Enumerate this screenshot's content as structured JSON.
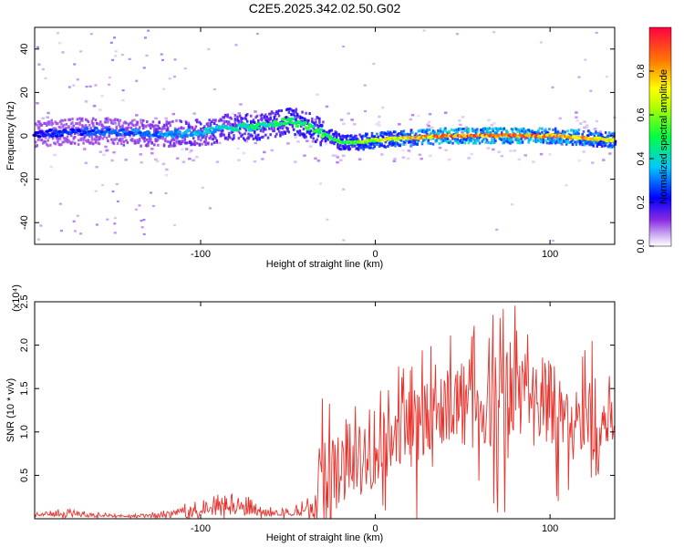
{
  "figure": {
    "title": "C2E5.2025.342.02.50.G02"
  },
  "colors": {
    "snr_line": "#e8322c",
    "background": "#ffffff",
    "axes": "#000000"
  },
  "chart_data": [
    {
      "type": "heatmap",
      "xlabel": "Height of straight line (km)",
      "ylabel": "Frequency (Hz)",
      "xlim": [
        -195,
        137
      ],
      "ylim": [
        -50,
        50
      ],
      "x_ticks": [
        -100,
        0,
        100
      ],
      "y_ticks": [
        -40,
        -20,
        0,
        20,
        40
      ],
      "colorbar": {
        "label": "Normalized spectral amplitude",
        "range": [
          0,
          1
        ],
        "ticks": [
          "0.0",
          "0.2",
          "0.4",
          "0.6",
          "0.8"
        ],
        "colormap": "rainbow (magenta-blue-cyan-green-yellow-red)"
      },
      "ridge_frequency_hz": [
        {
          "x": -190,
          "f": 1
        },
        {
          "x": -170,
          "f": 2
        },
        {
          "x": -150,
          "f": 2
        },
        {
          "x": -130,
          "f": 1
        },
        {
          "x": -110,
          "f": 1
        },
        {
          "x": -95,
          "f": 2
        },
        {
          "x": -85,
          "f": 4
        },
        {
          "x": -70,
          "f": 4
        },
        {
          "x": -60,
          "f": 5
        },
        {
          "x": -50,
          "f": 7
        },
        {
          "x": -40,
          "f": 5
        },
        {
          "x": -30,
          "f": 1
        },
        {
          "x": -20,
          "f": -3
        },
        {
          "x": -10,
          "f": -3
        },
        {
          "x": 0,
          "f": -2
        },
        {
          "x": 20,
          "f": -1
        },
        {
          "x": 40,
          "f": 0
        },
        {
          "x": 60,
          "f": 0
        },
        {
          "x": 80,
          "f": 0
        },
        {
          "x": 100,
          "f": 0
        },
        {
          "x": 120,
          "f": -1
        },
        {
          "x": 135,
          "f": -2
        }
      ],
      "ridge_amplitude": [
        {
          "x": -190,
          "a": 0.25
        },
        {
          "x": -150,
          "a": 0.3
        },
        {
          "x": -120,
          "a": 0.35
        },
        {
          "x": -100,
          "a": 0.4
        },
        {
          "x": -80,
          "a": 0.45
        },
        {
          "x": -60,
          "a": 0.5
        },
        {
          "x": -40,
          "a": 0.55
        },
        {
          "x": -20,
          "a": 0.55
        },
        {
          "x": 0,
          "a": 0.7
        },
        {
          "x": 20,
          "a": 0.8
        },
        {
          "x": 40,
          "a": 0.95
        },
        {
          "x": 60,
          "a": 0.95
        },
        {
          "x": 80,
          "a": 0.95
        },
        {
          "x": 100,
          "a": 0.9
        },
        {
          "x": 120,
          "a": 0.85
        },
        {
          "x": 135,
          "a": 0.7
        }
      ]
    },
    {
      "type": "line",
      "xlabel": "Height of straight line (km)",
      "ylabel": "SNR (10 * v/v)",
      "y_scale_label": "(x10⁴)",
      "xlim": [
        -195,
        137
      ],
      "ylim": [
        0,
        2.5
      ],
      "x_ticks": [
        -100,
        0,
        100
      ],
      "y_ticks": [
        0.5,
        1.0,
        1.5,
        2.0,
        2.5
      ],
      "series": [
        {
          "envelope_x": [
            -195,
            -180,
            -160,
            -140,
            -120,
            -105,
            -90,
            -75,
            -65,
            -55,
            -45,
            -35,
            -30,
            -25,
            -20,
            -10,
            0,
            10,
            20,
            30,
            40,
            50,
            60,
            70,
            80,
            90,
            100,
            110,
            120,
            130,
            137
          ],
          "mean_y": [
            0.04,
            0.06,
            0.04,
            0.03,
            0.04,
            0.08,
            0.12,
            0.14,
            0.07,
            0.06,
            0.08,
            0.12,
            0.3,
            0.45,
            0.55,
            0.65,
            0.75,
            0.95,
            1.1,
            1.25,
            1.3,
            1.35,
            1.3,
            1.35,
            1.3,
            1.25,
            1.2,
            1.15,
            1.1,
            1.1,
            1.2
          ],
          "peak_y": [
            0.07,
            0.12,
            0.08,
            0.06,
            0.1,
            0.2,
            0.28,
            0.3,
            0.15,
            0.12,
            0.18,
            0.3,
            1.5,
            1.5,
            1.2,
            1.4,
            1.4,
            1.75,
            2.05,
            2.1,
            2.05,
            2.35,
            2.2,
            2.45,
            2.5,
            2.0,
            1.85,
            1.75,
            2.0,
            2.25,
            1.9
          ]
        }
      ]
    }
  ]
}
